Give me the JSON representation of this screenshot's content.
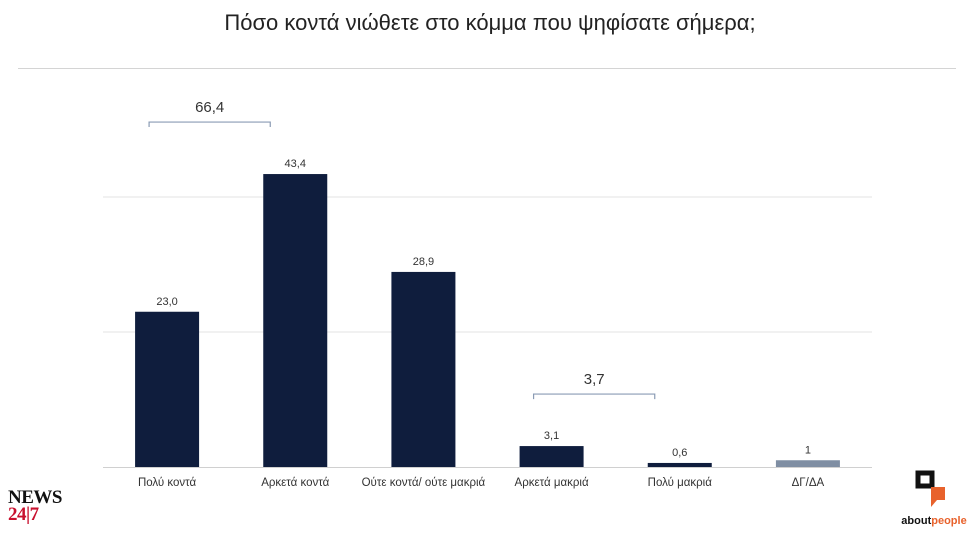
{
  "page": {
    "title": "Πόσο κοντά νιώθετε στο κόμμα που ψηφίσατε σήμερα;"
  },
  "chart_data": {
    "type": "bar",
    "categories": [
      "Πολύ κοντά",
      "Αρκετά κοντά",
      "Ούτε κοντά/ ούτε μακριά",
      "Αρκετά μακριά",
      "Πολύ μακριά",
      "ΔΓ/ΔΑ"
    ],
    "values": [
      23.0,
      43.4,
      28.9,
      3.1,
      0.6,
      1
    ],
    "data_labels": [
      "23,0",
      "43,4",
      "28,9",
      "3,1",
      "0,6",
      "1"
    ],
    "bar_colors": [
      "#0f1d3d",
      "#0f1d3d",
      "#0f1d3d",
      "#0f1d3d",
      "#0f1d3d",
      "#7f8ea3"
    ],
    "ylim": [
      0,
      50
    ],
    "grid": true,
    "brackets": [
      {
        "label": "66,4",
        "from": 0,
        "to": 1
      },
      {
        "label": "3,7",
        "from": 3,
        "to": 4
      }
    ]
  },
  "logos": {
    "news_line1": "NEWS",
    "news_line2": "24|7",
    "about_part1": "about",
    "about_part2": "people",
    "about_accent_color": "#e8622c"
  }
}
